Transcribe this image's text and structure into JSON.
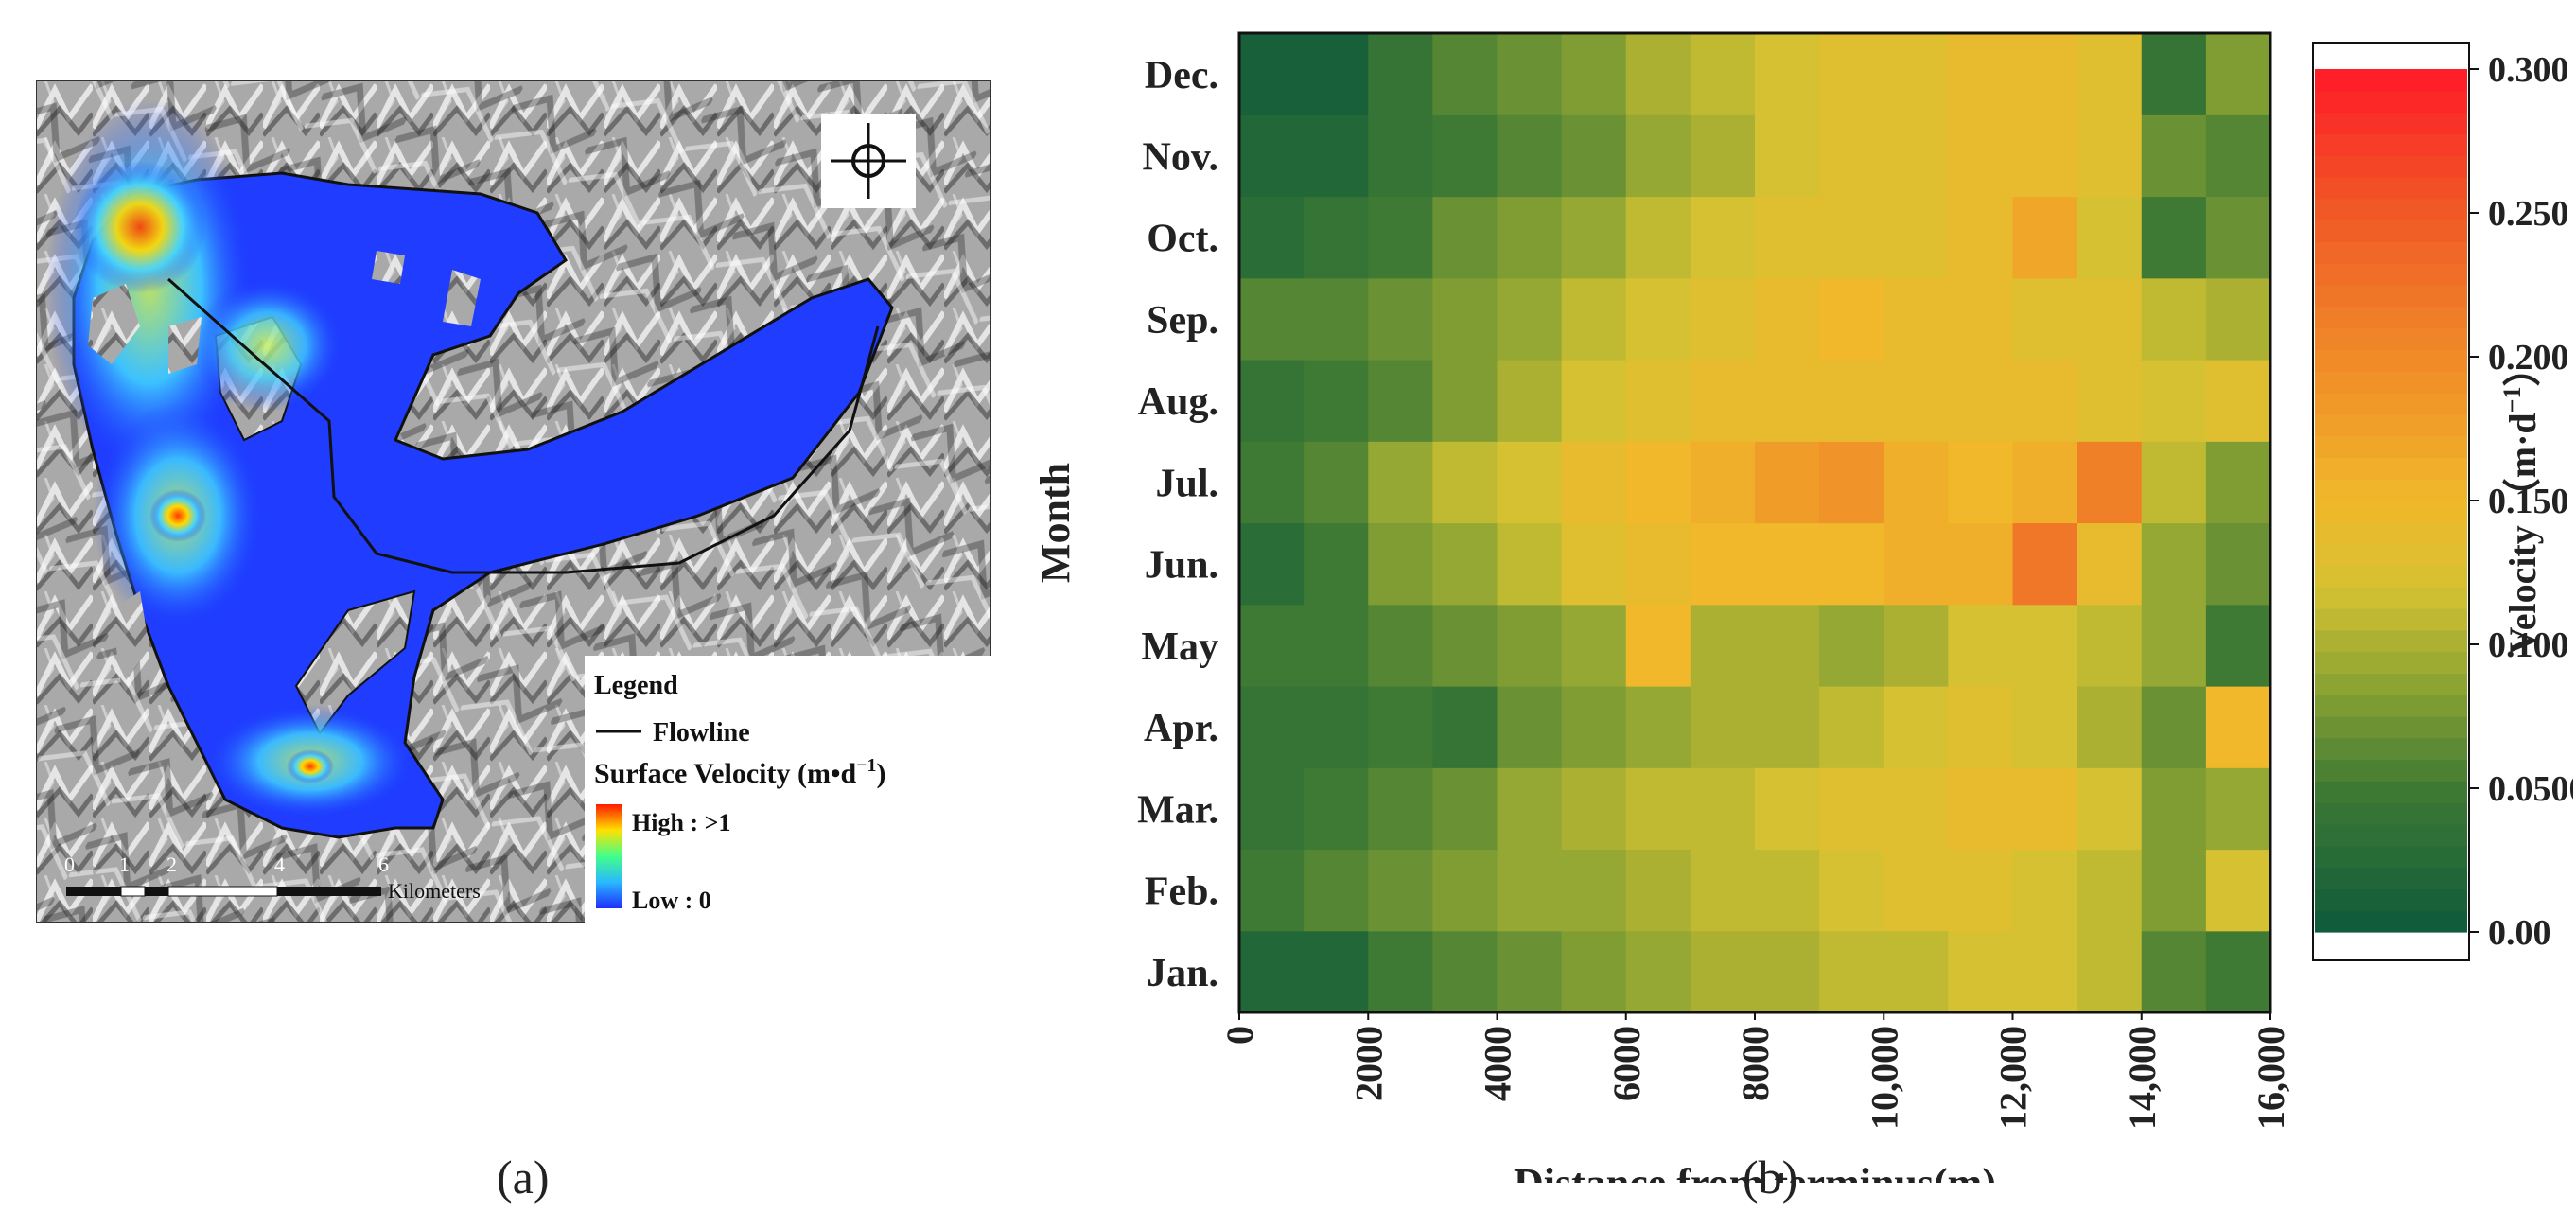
{
  "panels": {
    "a_label": "(a)",
    "b_label": "(b)"
  },
  "map": {
    "legend_title": "Legend",
    "flowline_label": "Flowline",
    "surface_velocity_label": "Surface Velocity (m•d",
    "surface_velocity_exp": "−1",
    "high_label": "High : >1",
    "low_label": "Low : 0",
    "scale_ticks": [
      "0",
      "1",
      "2",
      "4",
      "6"
    ],
    "scale_unit": "Kilometers",
    "colors": {
      "glacier_low": "#1f3cff",
      "glacier_mid": "#33c6ff",
      "glacier_high": "#ff2a00",
      "hillshade": "#9a9a9a"
    }
  },
  "chart_data": {
    "type": "heatmap",
    "title": "",
    "xlabel": "Distance from terminus(m)",
    "ylabel": "Month",
    "colorbar_label": "Velocity （m·d",
    "colorbar_label_exp": "−1",
    "colorbar_label_end": "）",
    "xlim": [
      0,
      16000
    ],
    "x_ticks": [
      0,
      2000,
      4000,
      6000,
      8000,
      10000,
      12000,
      14000,
      16000
    ],
    "x_tick_labels": [
      "0",
      "2000",
      "4000",
      "6000",
      "8000",
      "10,000",
      "12,000",
      "14,000",
      "16,000"
    ],
    "months": [
      "Jan.",
      "Feb.",
      "Mar.",
      "Apr.",
      "May",
      "Jun.",
      "Jul.",
      "Aug.",
      "Sep.",
      "Oct.",
      "Nov.",
      "Dec."
    ],
    "bin_width_m": 1000,
    "values": [
      [
        0.02,
        0.02,
        0.05,
        0.06,
        0.07,
        0.08,
        0.09,
        0.1,
        0.1,
        0.11,
        0.11,
        0.12,
        0.12,
        0.11,
        0.06,
        0.05
      ],
      [
        0.05,
        0.06,
        0.07,
        0.08,
        0.09,
        0.09,
        0.1,
        0.11,
        0.11,
        0.12,
        0.13,
        0.13,
        0.12,
        0.11,
        0.08,
        0.12
      ],
      [
        0.04,
        0.05,
        0.06,
        0.07,
        0.09,
        0.1,
        0.11,
        0.11,
        0.12,
        0.13,
        0.13,
        0.14,
        0.14,
        0.12,
        0.08,
        0.09
      ],
      [
        0.04,
        0.04,
        0.05,
        0.04,
        0.07,
        0.08,
        0.09,
        0.1,
        0.1,
        0.11,
        0.12,
        0.13,
        0.12,
        0.1,
        0.07,
        0.15
      ],
      [
        0.05,
        0.05,
        0.06,
        0.07,
        0.08,
        0.09,
        0.15,
        0.1,
        0.1,
        0.09,
        0.1,
        0.12,
        0.12,
        0.11,
        0.09,
        0.05
      ],
      [
        0.03,
        0.05,
        0.08,
        0.09,
        0.11,
        0.13,
        0.14,
        0.15,
        0.15,
        0.15,
        0.16,
        0.16,
        0.22,
        0.14,
        0.09,
        0.07
      ],
      [
        0.05,
        0.06,
        0.09,
        0.11,
        0.12,
        0.14,
        0.15,
        0.16,
        0.18,
        0.19,
        0.16,
        0.15,
        0.16,
        0.21,
        0.11,
        0.08
      ],
      [
        0.04,
        0.05,
        0.06,
        0.08,
        0.1,
        0.12,
        0.13,
        0.14,
        0.14,
        0.14,
        0.14,
        0.14,
        0.14,
        0.13,
        0.12,
        0.13
      ],
      [
        0.06,
        0.06,
        0.07,
        0.08,
        0.09,
        0.11,
        0.12,
        0.13,
        0.14,
        0.15,
        0.14,
        0.14,
        0.13,
        0.13,
        0.11,
        0.1
      ],
      [
        0.03,
        0.04,
        0.05,
        0.07,
        0.08,
        0.09,
        0.11,
        0.12,
        0.13,
        0.13,
        0.13,
        0.14,
        0.17,
        0.12,
        0.05,
        0.07
      ],
      [
        0.02,
        0.02,
        0.04,
        0.05,
        0.06,
        0.07,
        0.09,
        0.1,
        0.12,
        0.13,
        0.13,
        0.14,
        0.14,
        0.13,
        0.07,
        0.06
      ],
      [
        0.01,
        0.01,
        0.04,
        0.06,
        0.07,
        0.08,
        0.1,
        0.11,
        0.12,
        0.13,
        0.13,
        0.14,
        0.14,
        0.13,
        0.04,
        0.08
      ]
    ],
    "colorbar": {
      "min": 0.0,
      "max": 0.3,
      "ticks": [
        0.0,
        0.05,
        0.1,
        0.15,
        0.2,
        0.25,
        0.3
      ],
      "tick_labels": [
        "0.00",
        "0.0500",
        "0.100",
        "0.150",
        "0.200",
        "0.250",
        "0.300"
      ],
      "stops": [
        {
          "v": 0.0,
          "color": "#0d5a3a"
        },
        {
          "v": 0.05,
          "color": "#3f7a34"
        },
        {
          "v": 0.09,
          "color": "#95a833"
        },
        {
          "v": 0.12,
          "color": "#d6c132"
        },
        {
          "v": 0.15,
          "color": "#f0b82a"
        },
        {
          "v": 0.2,
          "color": "#f08a28"
        },
        {
          "v": 0.25,
          "color": "#f05a26"
        },
        {
          "v": 0.3,
          "color": "#ff1a28"
        }
      ]
    }
  }
}
